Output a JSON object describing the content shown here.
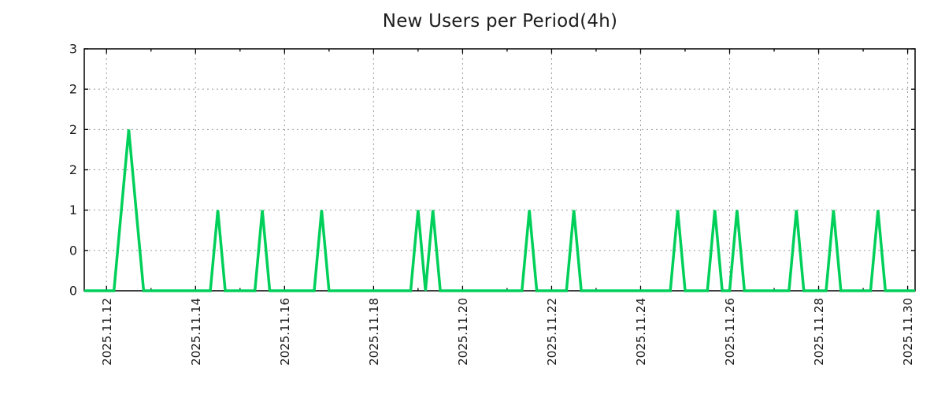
{
  "page": {
    "background": "#ffffff"
  },
  "chart_data": {
    "type": "line",
    "title": "New Users per Period(4h)",
    "xlabel": "",
    "ylabel": "",
    "legend": "none",
    "grid": true,
    "period_hours": 4,
    "line_color": "#00d05a",
    "grid_color": "#9a9a9a",
    "axis_color": "#000000",
    "text_color": "#1c1c1c",
    "ylim": [
      0,
      3
    ],
    "x_domain": [
      "2025-11-11 12:00",
      "2025-11-30 04:00"
    ],
    "y_ticks": [
      {
        "value": 0.0,
        "label": "0"
      },
      {
        "value": 0.5,
        "label": "0"
      },
      {
        "value": 1.0,
        "label": "1"
      },
      {
        "value": 1.5,
        "label": "2"
      },
      {
        "value": 2.0,
        "label": "2"
      },
      {
        "value": 2.5,
        "label": "2"
      },
      {
        "value": 3.0,
        "label": "3"
      }
    ],
    "x_ticks_major": [
      {
        "time": "2025-11-12 00:00",
        "label": "2025.11.12"
      },
      {
        "time": "2025-11-14 00:00",
        "label": "2025.11.14"
      },
      {
        "time": "2025-11-16 00:00",
        "label": "2025.11.16"
      },
      {
        "time": "2025-11-18 00:00",
        "label": "2025.11.18"
      },
      {
        "time": "2025-11-20 00:00",
        "label": "2025.11.20"
      },
      {
        "time": "2025-11-22 00:00",
        "label": "2025.11.22"
      },
      {
        "time": "2025-11-24 00:00",
        "label": "2025.11.24"
      },
      {
        "time": "2025-11-26 00:00",
        "label": "2025.11.26"
      },
      {
        "time": "2025-11-28 00:00",
        "label": "2025.11.28"
      },
      {
        "time": "2025-11-30 00:00",
        "label": "2025.11.30"
      }
    ],
    "x_ticks_minor": [
      "2025-11-13 00:00",
      "2025-11-15 00:00",
      "2025-11-17 00:00",
      "2025-11-19 00:00",
      "2025-11-21 00:00",
      "2025-11-23 00:00",
      "2025-11-25 00:00",
      "2025-11-27 00:00",
      "2025-11-29 00:00"
    ],
    "points": [
      [
        "2025-11-11 12:00",
        0
      ],
      [
        "2025-11-12 04:00",
        0
      ],
      [
        "2025-11-12 08:00",
        1
      ],
      [
        "2025-11-12 12:00",
        2
      ],
      [
        "2025-11-12 16:00",
        1
      ],
      [
        "2025-11-12 20:00",
        0
      ],
      [
        "2025-11-14 08:00",
        0
      ],
      [
        "2025-11-14 12:00",
        1
      ],
      [
        "2025-11-14 16:00",
        0
      ],
      [
        "2025-11-15 08:00",
        0
      ],
      [
        "2025-11-15 12:00",
        1
      ],
      [
        "2025-11-15 16:00",
        0
      ],
      [
        "2025-11-16 16:00",
        0
      ],
      [
        "2025-11-16 20:00",
        1
      ],
      [
        "2025-11-17 00:00",
        0
      ],
      [
        "2025-11-18 20:00",
        0
      ],
      [
        "2025-11-19 00:00",
        1
      ],
      [
        "2025-11-19 04:00",
        0
      ],
      [
        "2025-11-19 08:00",
        1
      ],
      [
        "2025-11-19 12:00",
        0
      ],
      [
        "2025-11-21 08:00",
        0
      ],
      [
        "2025-11-21 12:00",
        1
      ],
      [
        "2025-11-21 16:00",
        0
      ],
      [
        "2025-11-22 08:00",
        0
      ],
      [
        "2025-11-22 12:00",
        1
      ],
      [
        "2025-11-22 16:00",
        0
      ],
      [
        "2025-11-24 16:00",
        0
      ],
      [
        "2025-11-24 20:00",
        1
      ],
      [
        "2025-11-25 00:00",
        0
      ],
      [
        "2025-11-25 12:00",
        0
      ],
      [
        "2025-11-25 16:00",
        1
      ],
      [
        "2025-11-25 20:00",
        0
      ],
      [
        "2025-11-26 00:00",
        0
      ],
      [
        "2025-11-26 04:00",
        1
      ],
      [
        "2025-11-26 08:00",
        0
      ],
      [
        "2025-11-27 08:00",
        0
      ],
      [
        "2025-11-27 12:00",
        1
      ],
      [
        "2025-11-27 16:00",
        0
      ],
      [
        "2025-11-28 04:00",
        0
      ],
      [
        "2025-11-28 08:00",
        1
      ],
      [
        "2025-11-28 12:00",
        0
      ],
      [
        "2025-11-29 04:00",
        0
      ],
      [
        "2025-11-29 08:00",
        1
      ],
      [
        "2025-11-29 12:00",
        0
      ],
      [
        "2025-11-30 04:00",
        0
      ]
    ]
  }
}
